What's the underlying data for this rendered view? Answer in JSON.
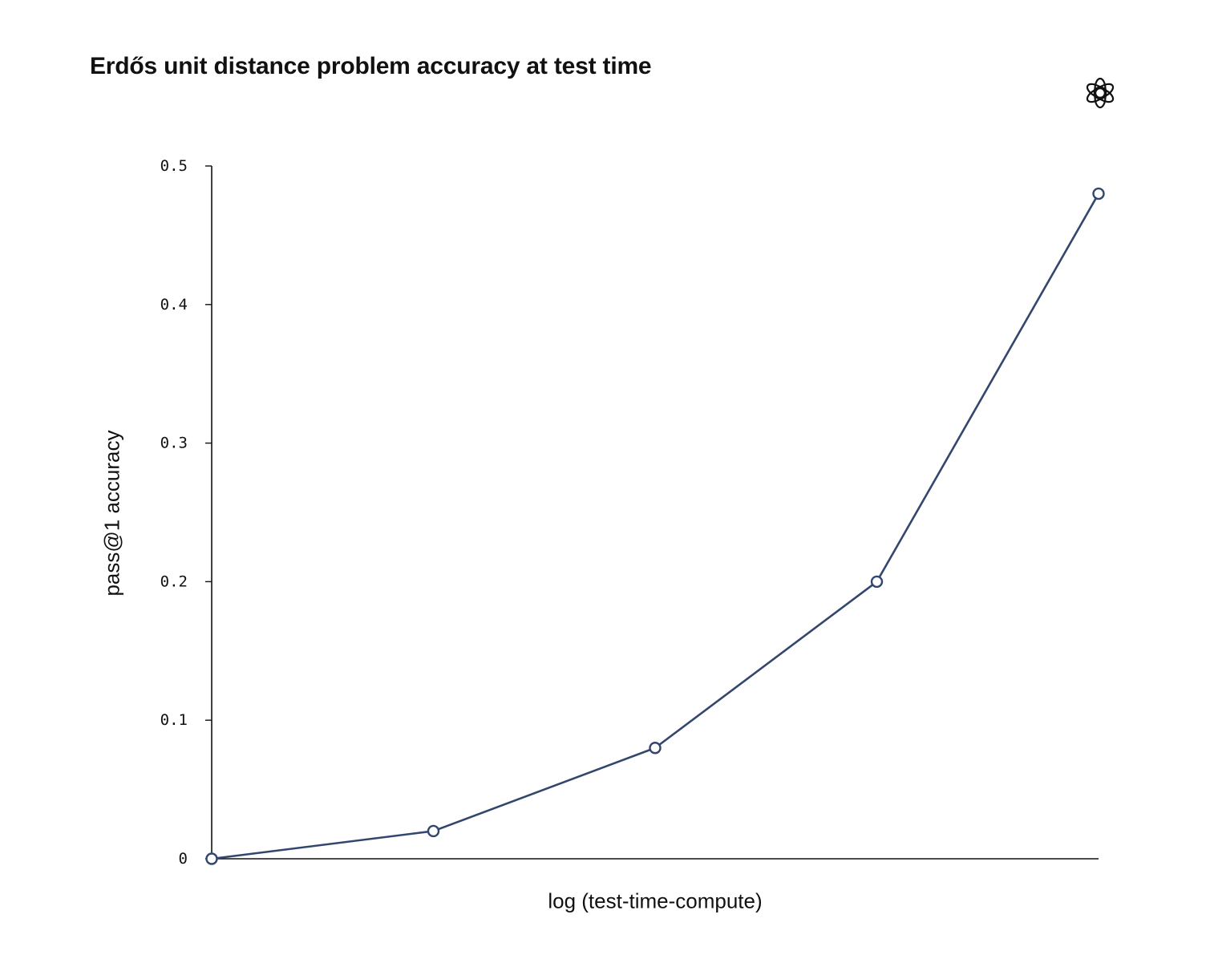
{
  "chart_data": {
    "type": "line",
    "title": "Erdős unit distance problem accuracy at test time",
    "xlabel": "log (test-time-compute)",
    "ylabel": "pass@1 accuracy",
    "ylim": [
      0,
      0.5
    ],
    "yticks": [
      {
        "value": 0,
        "label": "0"
      },
      {
        "value": 0.1,
        "label": "0.1"
      },
      {
        "value": 0.2,
        "label": "0.2"
      },
      {
        "value": 0.3,
        "label": "0.3"
      },
      {
        "value": 0.4,
        "label": "0.4"
      },
      {
        "value": 0.5,
        "label": "0.5"
      }
    ],
    "grid": false,
    "x": [
      1,
      2,
      3,
      4,
      5
    ],
    "series": [
      {
        "values": [
          0.0,
          0.02,
          0.08,
          0.2,
          0.48
        ]
      }
    ],
    "line_color": "#33466e",
    "logo": "openai-logo-icon"
  }
}
